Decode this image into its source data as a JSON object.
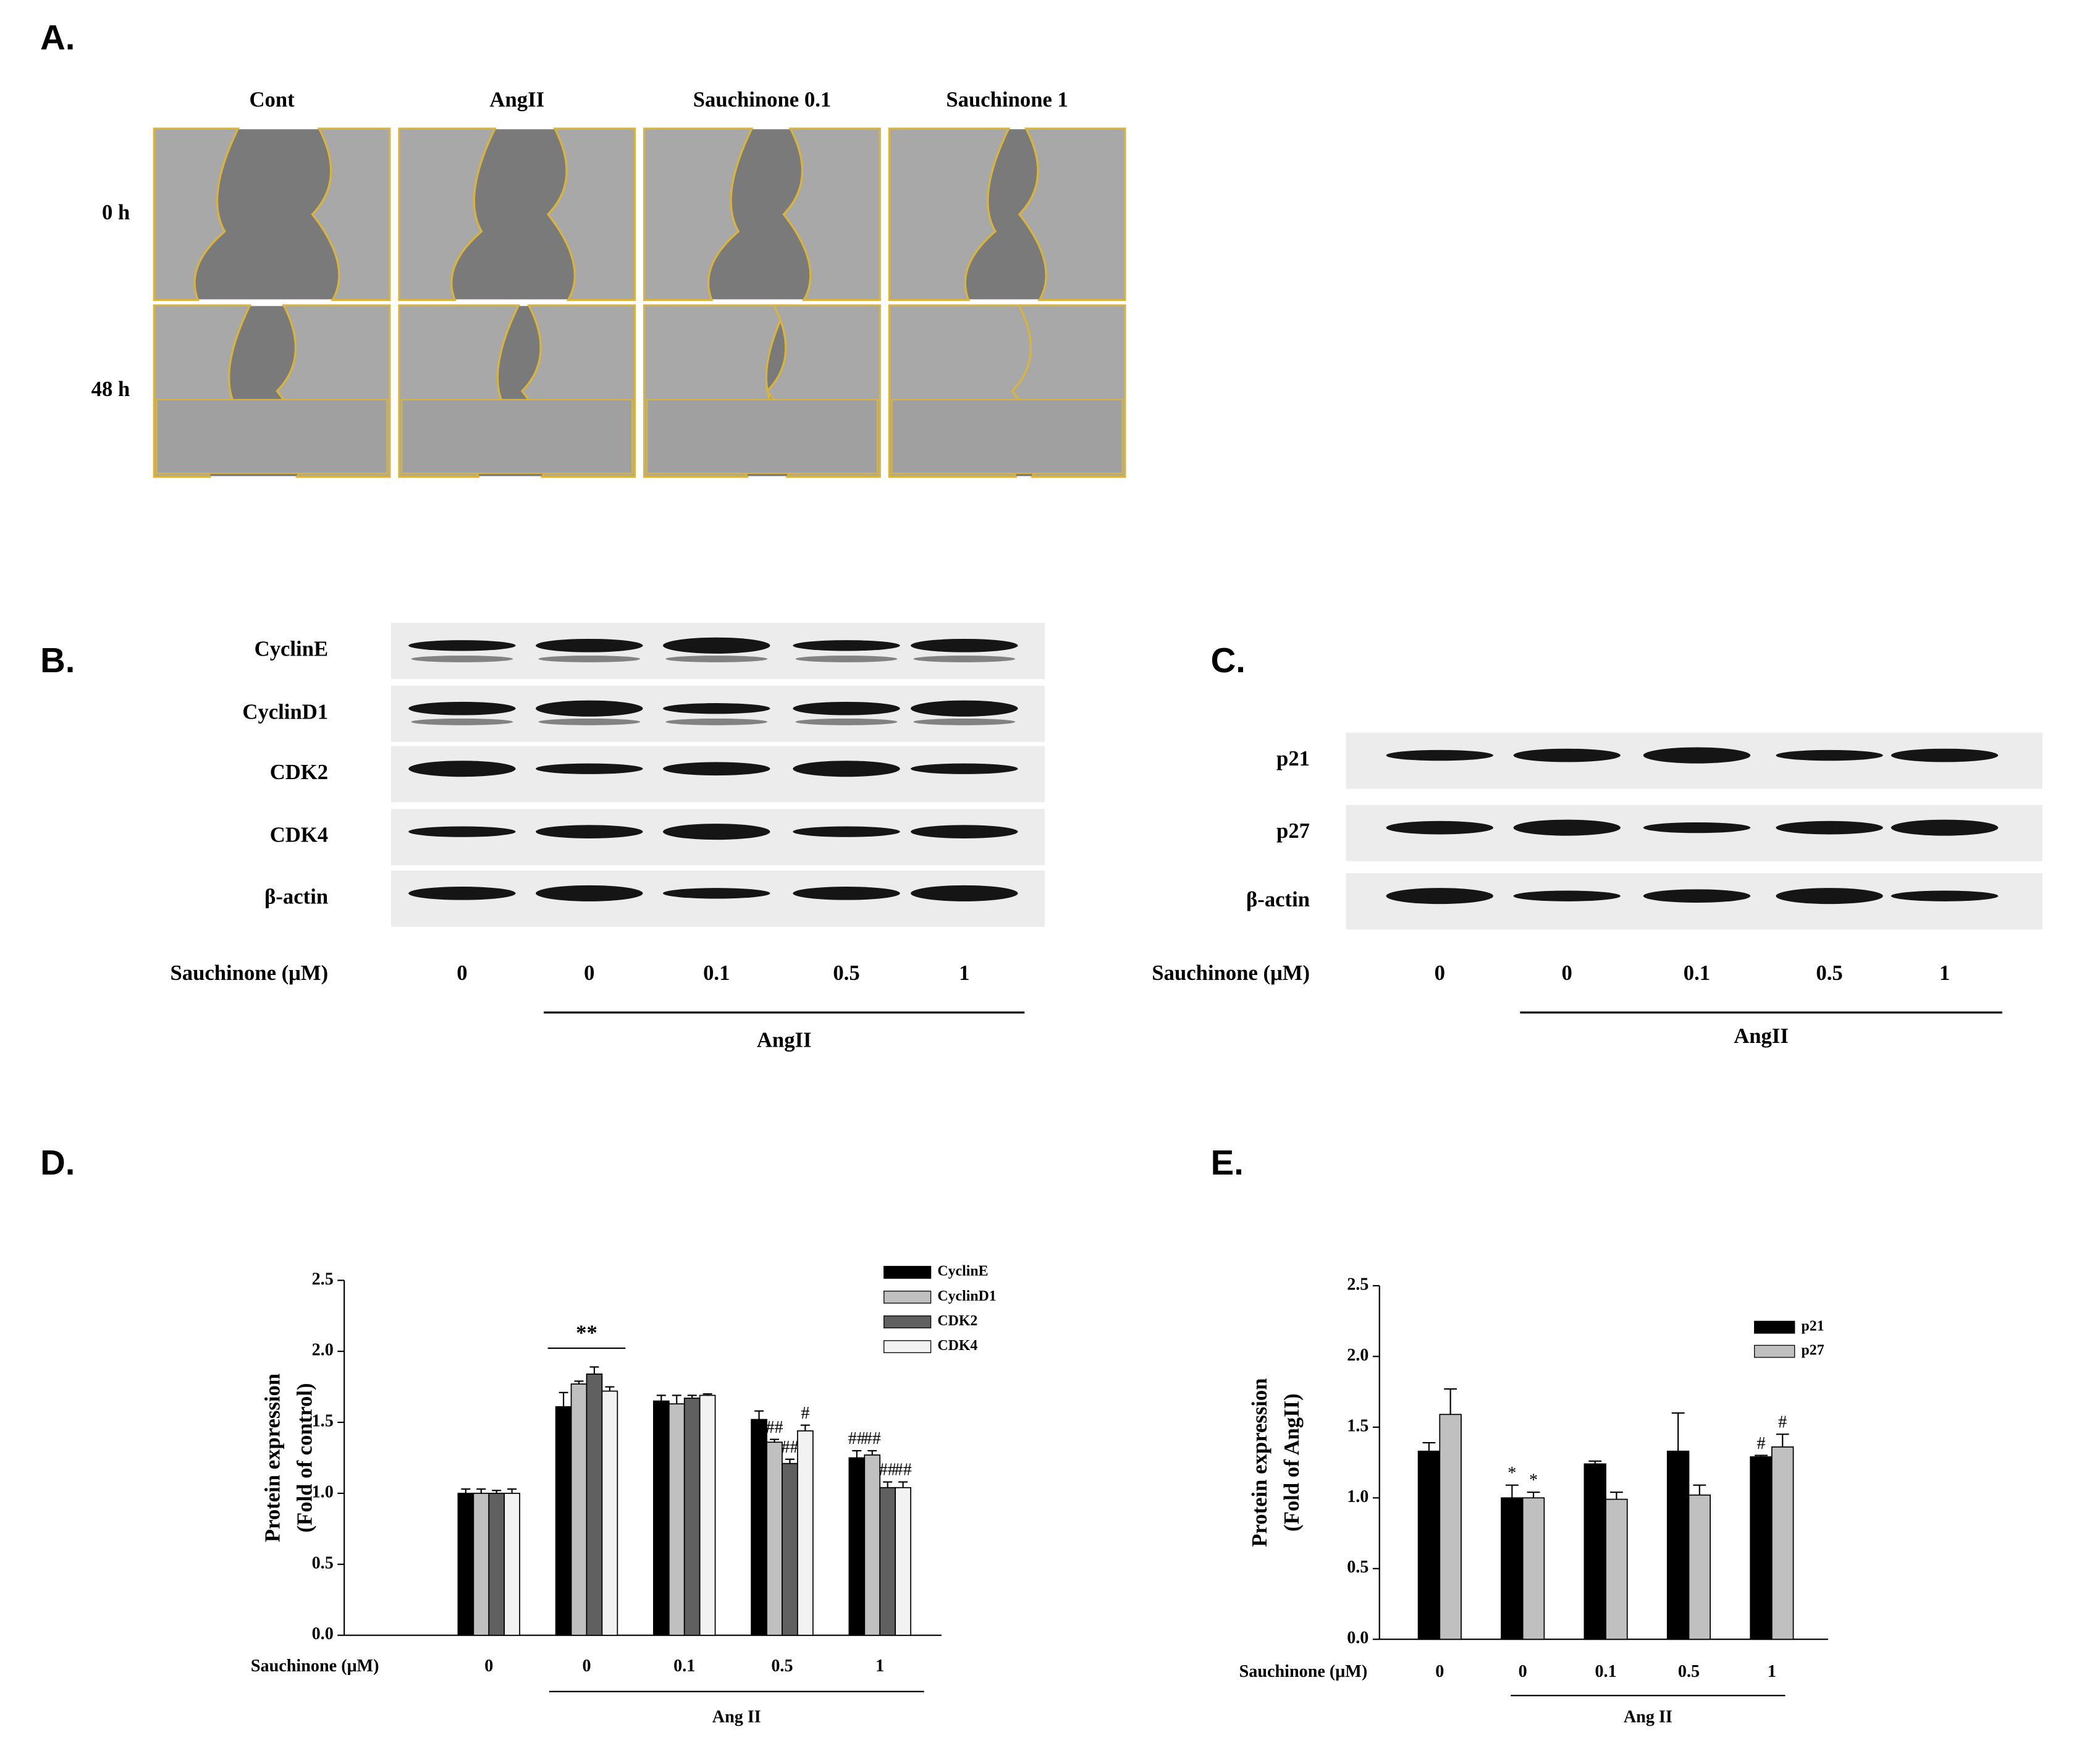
{
  "panel_labels": {
    "a": "A.",
    "b": "B.",
    "c": "C.",
    "d": "D.",
    "e": "E."
  },
  "panel_a": {
    "columns": [
      "Cont",
      "AngII",
      "Sauchinone 0.1",
      "Sauchinone 1"
    ],
    "rows": [
      "0 h",
      "48 h"
    ]
  },
  "panel_b": {
    "proteins": [
      "CyclinE",
      "CyclinD1",
      "CDK2",
      "CDK4",
      "β-actin"
    ],
    "xlabel": "Sauchinone (μM)",
    "doses": [
      "0",
      "0",
      "0.1",
      "0.5",
      "1"
    ],
    "group_label": "AngII"
  },
  "panel_c": {
    "proteins": [
      "p21",
      "p27",
      "β-actin"
    ],
    "xlabel": "Sauchinone (μM)",
    "doses": [
      "0",
      "0",
      "0.1",
      "0.5",
      "1"
    ],
    "group_label": "AngII"
  },
  "chart_data": [
    {
      "type": "bar",
      "xlabel": "Sauchinone (μM)",
      "ylabel": [
        "Protein expression",
        "(Fold of control)"
      ],
      "categories": [
        "0",
        "0",
        "0.1",
        "0.5",
        "1"
      ],
      "group_label": "Ang II",
      "category_annotations": [
        null,
        "**",
        null,
        null,
        null
      ],
      "series": [
        {
          "name": "CyclinE",
          "color": "#000000",
          "values": [
            1.0,
            1.61,
            1.65,
            1.52,
            1.25
          ],
          "errors": [
            0.03,
            0.1,
            0.04,
            0.06,
            0.05
          ],
          "significance": [
            null,
            null,
            null,
            null,
            "##"
          ]
        },
        {
          "name": "CyclinD1",
          "color": "#c0c0c0",
          "values": [
            1.0,
            1.77,
            1.63,
            1.36,
            1.27
          ],
          "errors": [
            0.03,
            0.02,
            0.06,
            0.02,
            0.03
          ],
          "significance": [
            null,
            null,
            null,
            "##",
            "##"
          ]
        },
        {
          "name": "CDK2",
          "color": "#606060",
          "values": [
            1.0,
            1.84,
            1.67,
            1.21,
            1.04
          ],
          "errors": [
            0.02,
            0.05,
            0.02,
            0.03,
            0.04
          ],
          "significance": [
            null,
            null,
            null,
            "##",
            "##"
          ]
        },
        {
          "name": "CDK4",
          "color": "#f2f2f2",
          "values": [
            1.0,
            1.72,
            1.69,
            1.44,
            1.04
          ],
          "errors": [
            0.03,
            0.03,
            0.01,
            0.04,
            0.04
          ],
          "significance": [
            null,
            null,
            null,
            "#",
            "##"
          ]
        }
      ],
      "ylim": [
        0,
        2.5
      ],
      "yticks": [
        {
          "value": 0,
          "label": "0.0"
        },
        0.5,
        {
          "value": 1,
          "label": "1.0"
        },
        1.5,
        {
          "value": 2,
          "label": "2.0"
        },
        2.5
      ],
      "legend": "upper right"
    },
    {
      "type": "bar",
      "xlabel": "Sauchinone (μM)",
      "ylabel": [
        "Protein expression",
        "(Fold of AngII)"
      ],
      "categories": [
        "0",
        "0",
        "0.1",
        "0.5",
        "1"
      ],
      "group_label": "Ang II",
      "category_annotations": [
        null,
        null,
        null,
        null,
        null
      ],
      "series": [
        {
          "name": "p21",
          "color": "#000000",
          "values": [
            1.33,
            1.0,
            1.24,
            1.33,
            1.29
          ],
          "errors": [
            0.06,
            0.09,
            0.02,
            0.27,
            0.01
          ],
          "significance": [
            null,
            "*",
            null,
            null,
            "#"
          ]
        },
        {
          "name": "p27",
          "color": "#c0c0c0",
          "values": [
            1.59,
            1.0,
            0.99,
            1.02,
            1.36
          ],
          "errors": [
            0.18,
            0.04,
            0.05,
            0.07,
            0.09
          ],
          "significance": [
            null,
            "*",
            null,
            null,
            "#"
          ]
        }
      ],
      "ylim": [
        0,
        2.5
      ],
      "yticks": [
        {
          "value": 0,
          "label": "0.0"
        },
        0.5,
        {
          "value": 1,
          "label": "1.0"
        },
        1.5,
        {
          "value": 2,
          "label": "2.0"
        },
        2.5
      ],
      "legend": "upper right"
    }
  ]
}
